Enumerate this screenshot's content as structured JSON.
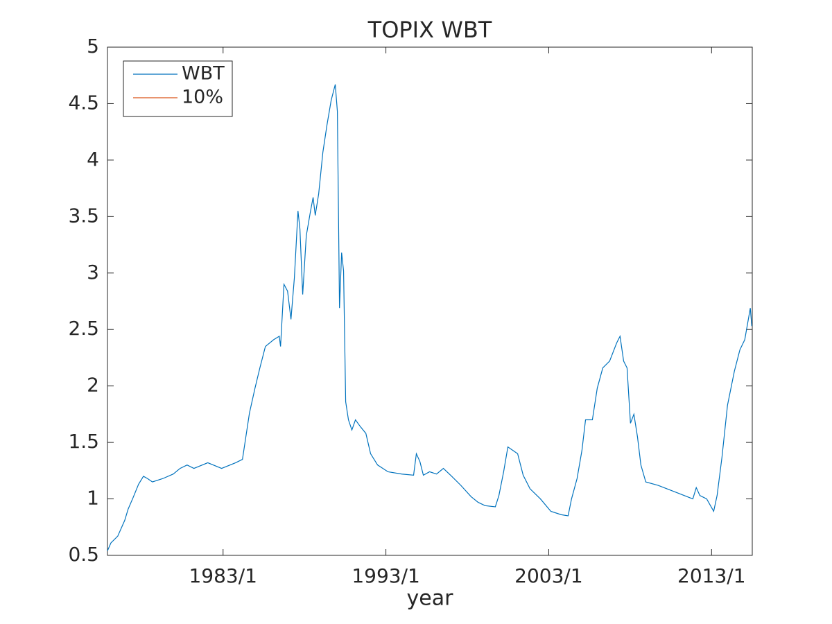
{
  "chart_data": {
    "type": "line",
    "title": "TOPIX WBT",
    "x_label": "year",
    "x": [
      1975.9,
      1976.11,
      1976.53,
      1976.96,
      1977.17,
      1977.47,
      1977.81,
      1978.11,
      1978.36,
      1978.66,
      1979.3,
      1979.94,
      1980.36,
      1980.79,
      1981.21,
      1982.06,
      1982.91,
      1983.77,
      1984.19,
      1984.4,
      1984.62,
      1984.96,
      1985.26,
      1985.6,
      1986.11,
      1986.45,
      1986.53,
      1986.74,
      1986.96,
      1987.17,
      1987.38,
      1987.6,
      1987.72,
      1987.89,
      1988.11,
      1988.36,
      1988.53,
      1988.66,
      1988.87,
      1989.13,
      1989.38,
      1989.64,
      1989.89,
      1990.02,
      1990.15,
      1990.28,
      1990.4,
      1990.53,
      1990.7,
      1990.91,
      1991.13,
      1991.43,
      1991.77,
      1992.06,
      1992.49,
      1993.13,
      1993.98,
      1994.7,
      1994.87,
      1995.09,
      1995.3,
      1995.68,
      1996.11,
      1996.53,
      1997.04,
      1997.6,
      1998.23,
      1998.66,
      1999.09,
      1999.72,
      1999.94,
      2000.23,
      2000.49,
      2000.79,
      2001.09,
      2001.43,
      2001.85,
      2002.49,
      2003.13,
      2003.77,
      2004.19,
      2004.4,
      2004.74,
      2005.04,
      2005.26,
      2005.68,
      2005.98,
      2006.32,
      2006.74,
      2007.17,
      2007.38,
      2007.6,
      2007.81,
      2008.02,
      2008.23,
      2008.45,
      2008.66,
      2008.96,
      2009.72,
      2010.79,
      2011.85,
      2012.06,
      2012.28,
      2012.7,
      2013.13,
      2013.34,
      2013.64,
      2013.98,
      2014.4,
      2014.74,
      2015.04,
      2015.38,
      2015.47
    ],
    "series": [
      {
        "name": "WBT",
        "color": "#0072bd",
        "values": [
          0.54,
          0.61,
          0.67,
          0.81,
          0.91,
          1.01,
          1.13,
          1.2,
          1.18,
          1.15,
          1.18,
          1.22,
          1.27,
          1.3,
          1.27,
          1.32,
          1.27,
          1.32,
          1.35,
          1.55,
          1.76,
          1.98,
          2.16,
          2.35,
          2.41,
          2.44,
          2.35,
          2.9,
          2.84,
          2.59,
          2.96,
          3.55,
          3.39,
          2.81,
          3.33,
          3.54,
          3.67,
          3.51,
          3.7,
          4.07,
          4.31,
          4.53,
          4.67,
          4.43,
          2.69,
          3.18,
          3.02,
          1.86,
          1.7,
          1.61,
          1.7,
          1.64,
          1.58,
          1.4,
          1.3,
          1.24,
          1.22,
          1.21,
          1.4,
          1.33,
          1.21,
          1.24,
          1.22,
          1.27,
          1.2,
          1.12,
          1.02,
          0.97,
          0.94,
          0.93,
          1.03,
          1.24,
          1.46,
          1.43,
          1.4,
          1.21,
          1.09,
          1.0,
          0.89,
          0.86,
          0.85,
          1.0,
          1.18,
          1.43,
          1.7,
          1.7,
          1.98,
          2.16,
          2.22,
          2.38,
          2.44,
          2.22,
          2.16,
          1.67,
          1.75,
          1.55,
          1.3,
          1.15,
          1.12,
          1.06,
          1.0,
          1.1,
          1.03,
          1.0,
          0.89,
          1.03,
          1.37,
          1.83,
          2.13,
          2.32,
          2.41,
          2.69,
          2.53
        ]
      },
      {
        "name": "10%",
        "color": "#d95319",
        "values": [
          null,
          null,
          null,
          null,
          null,
          null,
          null,
          null,
          null,
          null,
          null,
          null,
          null,
          null,
          null,
          null,
          null,
          null,
          null,
          null,
          null,
          null,
          null,
          null,
          null,
          null,
          null,
          null,
          null,
          null,
          null,
          null,
          null,
          null,
          null,
          null,
          null,
          null,
          null,
          null,
          null,
          null,
          null,
          null,
          null,
          null,
          null,
          null,
          null,
          null,
          null,
          null,
          null,
          null,
          null,
          null,
          null,
          null,
          null,
          null,
          null,
          null,
          null,
          null,
          null,
          null,
          null,
          null,
          null,
          null,
          null,
          null,
          null,
          null,
          null,
          null,
          null,
          null,
          null,
          null,
          null,
          null,
          null,
          null,
          null,
          null,
          null,
          null,
          null,
          null,
          null,
          null,
          null,
          null,
          null,
          null,
          null,
          null,
          null,
          null,
          null,
          null,
          null,
          null,
          null,
          null,
          null,
          null,
          null,
          null,
          null,
          null,
          null
        ]
      }
    ],
    "xlim": [
      1975.9,
      2015.5
    ],
    "xticks": [
      {
        "value": 1983,
        "label": "1983/1"
      },
      {
        "value": 1993,
        "label": "1993/1"
      },
      {
        "value": 2003,
        "label": "2003/1"
      },
      {
        "value": 2013,
        "label": "2013/1"
      }
    ],
    "ylim": [
      0.5,
      5
    ],
    "yticks": [
      0.5,
      1,
      1.5,
      2,
      2.5,
      3,
      3.5,
      4,
      4.5,
      5
    ],
    "grid": false,
    "legend": "top-left"
  }
}
